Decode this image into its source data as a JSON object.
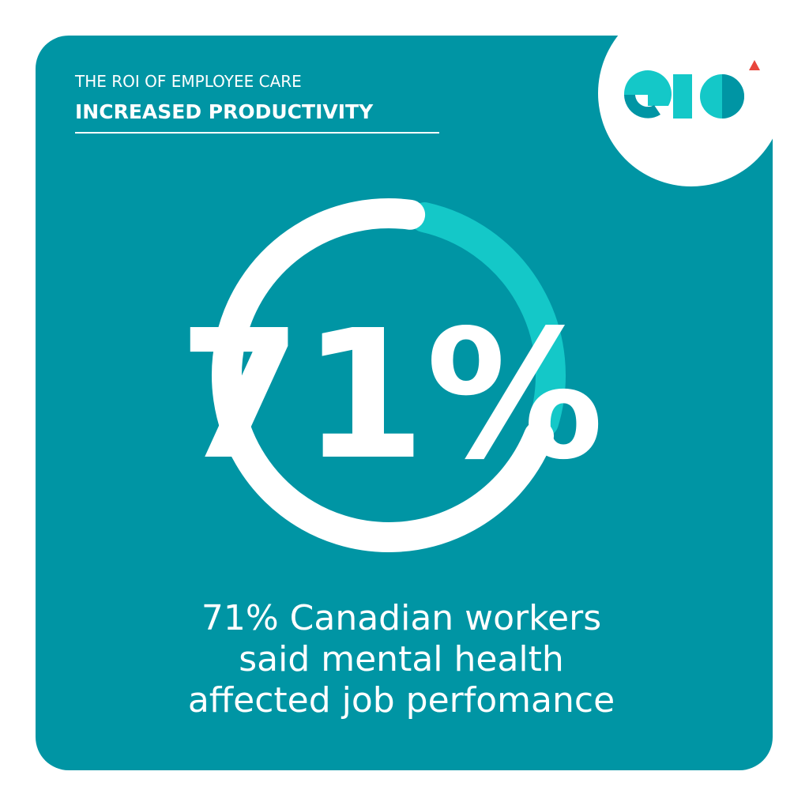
{
  "chart_data": {
    "type": "donut",
    "title": "THE ROI OF EMPLOYEE CARE",
    "subtitle": "INCREASED PRODUCTIVITY",
    "values": [
      71
    ],
    "value_labels": [
      "71%"
    ],
    "color": "#ffffff",
    "rest_color": "#14c8c8",
    "annotations": [
      "71% Canadian workers",
      "said mental health",
      "affected job perfomance"
    ]
  }
}
